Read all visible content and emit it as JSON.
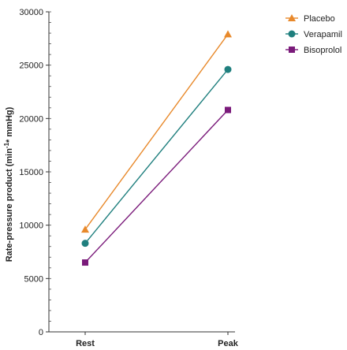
{
  "chart_data": {
    "type": "line",
    "title": "",
    "xlabel": "",
    "ylabel": "Rate-pressure product (min",
    "ylabel_sup": "-1",
    "ylabel_tail": "* mmHg)",
    "categories": [
      "Rest",
      "Peak"
    ],
    "ylim": [
      0,
      30000
    ],
    "yticks": [
      0,
      5000,
      10000,
      15000,
      20000,
      25000,
      30000
    ],
    "grid": false,
    "legend_position": "top-right",
    "series": [
      {
        "name": "Placebo",
        "values": [
          9600,
          27900
        ],
        "color": "#E8892B",
        "marker": "triangle"
      },
      {
        "name": "Verapamil",
        "values": [
          8300,
          24600
        ],
        "color": "#1F7F7E",
        "marker": "circle"
      },
      {
        "name": "Bisoprolol",
        "values": [
          6500,
          20800
        ],
        "color": "#7A1A7A",
        "marker": "square"
      }
    ]
  }
}
